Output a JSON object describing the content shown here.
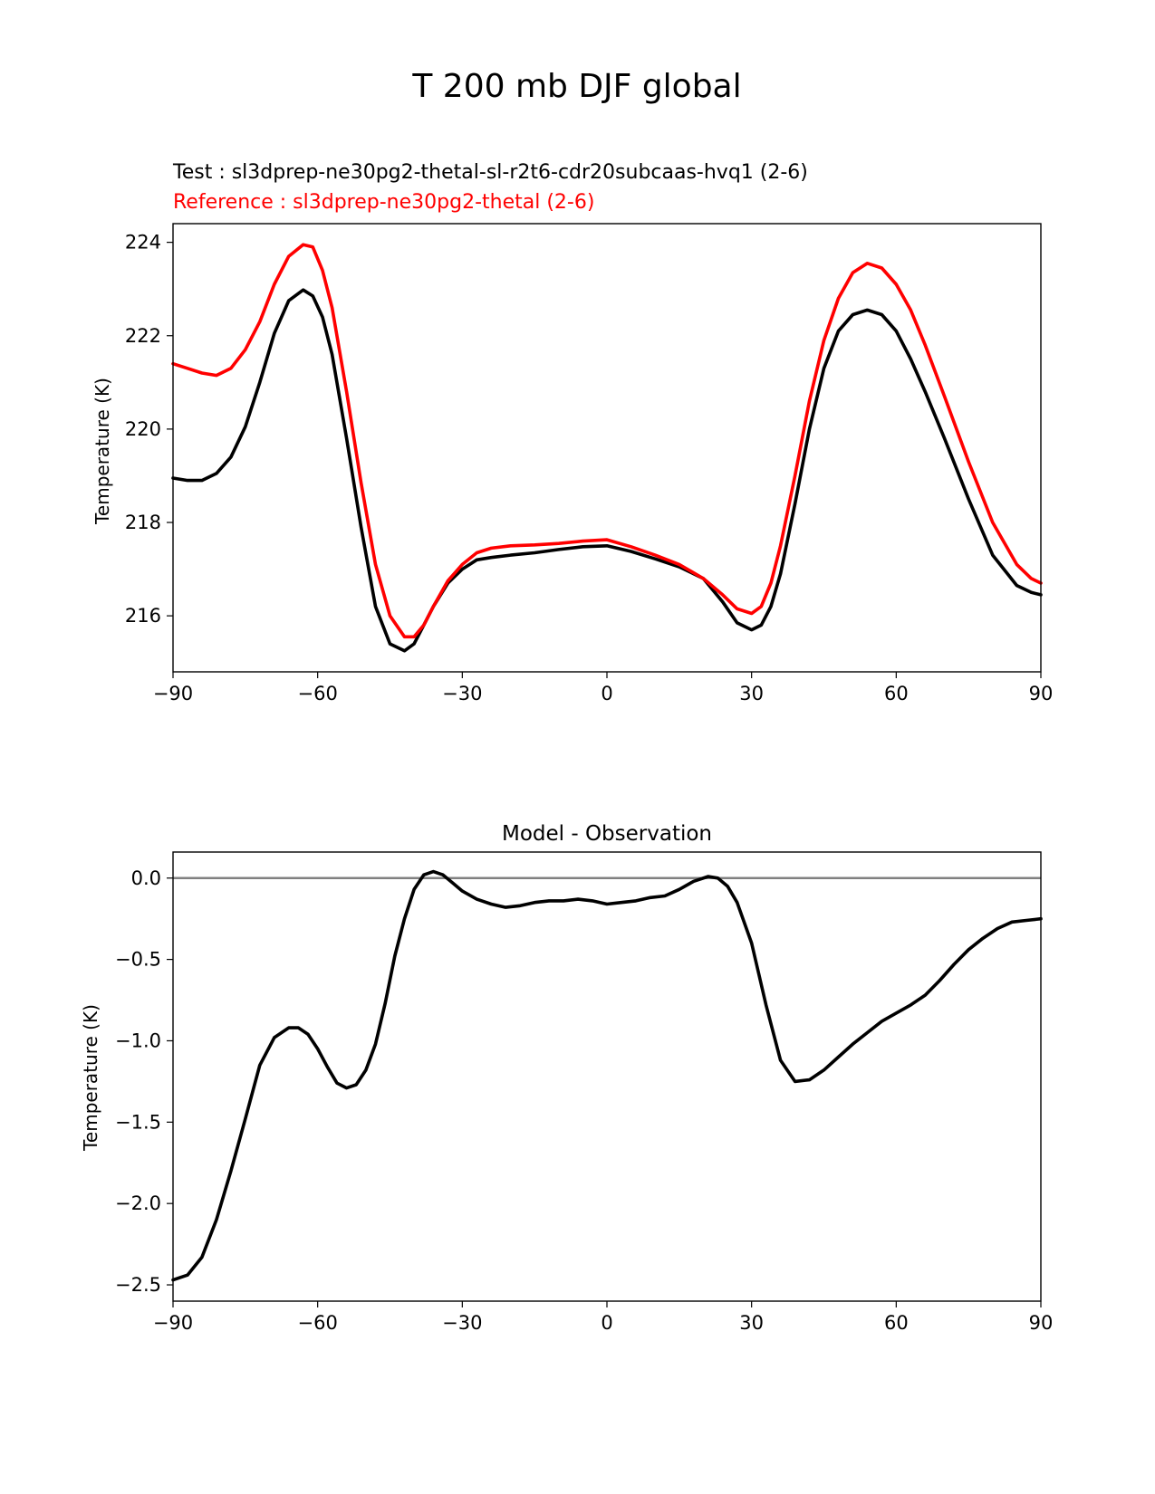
{
  "figure": {
    "title": "T 200 mb DJF global"
  },
  "colors": {
    "test": "#000000",
    "reference": "#ff0000",
    "zero_line": "#808080"
  },
  "chart_data": [
    {
      "type": "line",
      "test_label": "Test : sl3dprep-ne30pg2-thetal-sl-r2t6-cdr20subcaas-hvq1 (2-6)",
      "reference_label": "Reference : sl3dprep-ne30pg2-thetal (2-6)",
      "xlabel": "",
      "ylabel": "Temperature (K)",
      "xlim": [
        -90,
        90
      ],
      "ylim": [
        214.8,
        224.4
      ],
      "xticks": [
        -90,
        -60,
        -30,
        0,
        30,
        60,
        90
      ],
      "xtick_labels": [
        "−90",
        "−60",
        "−30",
        "0",
        "30",
        "60",
        "90"
      ],
      "yticks": [
        216,
        218,
        220,
        222,
        224
      ],
      "ytick_labels": [
        "216",
        "218",
        "220",
        "222",
        "224"
      ],
      "grid": false,
      "series": [
        {
          "key": "test",
          "x": [
            -90,
            -87,
            -84,
            -81,
            -78,
            -75,
            -72,
            -69,
            -66,
            -63,
            -61,
            -59,
            -57,
            -54,
            -51,
            -48,
            -45,
            -42,
            -40,
            -38,
            -36,
            -33,
            -30,
            -27,
            -24,
            -20,
            -15,
            -10,
            -5,
            0,
            5,
            10,
            15,
            20,
            24,
            27,
            30,
            32,
            34,
            36,
            39,
            42,
            45,
            48,
            51,
            54,
            57,
            60,
            63,
            66,
            70,
            75,
            80,
            85,
            88,
            90
          ],
          "y": [
            218.95,
            218.9,
            218.9,
            219.05,
            219.4,
            220.05,
            221.0,
            222.05,
            222.75,
            222.98,
            222.85,
            222.4,
            221.6,
            219.8,
            217.9,
            216.2,
            215.4,
            215.25,
            215.4,
            215.8,
            216.2,
            216.7,
            217.0,
            217.2,
            217.25,
            217.3,
            217.35,
            217.42,
            217.48,
            217.5,
            217.38,
            217.22,
            217.05,
            216.8,
            216.3,
            215.85,
            215.7,
            215.8,
            216.2,
            216.9,
            218.4,
            220.0,
            221.3,
            222.1,
            222.45,
            222.55,
            222.45,
            222.1,
            221.5,
            220.8,
            219.8,
            218.5,
            217.3,
            216.65,
            216.5,
            216.45
          ]
        },
        {
          "key": "reference",
          "x": [
            -90,
            -87,
            -84,
            -81,
            -78,
            -75,
            -72,
            -69,
            -66,
            -63,
            -61,
            -59,
            -57,
            -54,
            -51,
            -48,
            -45,
            -42,
            -40,
            -38,
            -36,
            -33,
            -30,
            -27,
            -24,
            -20,
            -15,
            -10,
            -5,
            0,
            5,
            10,
            15,
            20,
            24,
            27,
            30,
            32,
            34,
            36,
            39,
            42,
            45,
            48,
            51,
            54,
            57,
            60,
            63,
            66,
            70,
            75,
            80,
            85,
            88,
            90
          ],
          "y": [
            221.4,
            221.3,
            221.2,
            221.15,
            221.3,
            221.7,
            222.3,
            223.1,
            223.7,
            223.95,
            223.9,
            223.4,
            222.6,
            220.8,
            218.85,
            217.1,
            216.0,
            215.55,
            215.55,
            215.8,
            216.2,
            216.75,
            217.1,
            217.35,
            217.45,
            217.5,
            217.52,
            217.55,
            217.6,
            217.63,
            217.48,
            217.3,
            217.1,
            216.8,
            216.45,
            216.15,
            216.05,
            216.2,
            216.7,
            217.5,
            219.0,
            220.6,
            221.9,
            222.8,
            223.35,
            223.55,
            223.45,
            223.1,
            222.55,
            221.8,
            220.7,
            219.3,
            218.0,
            217.1,
            216.8,
            216.7
          ]
        }
      ]
    },
    {
      "type": "line",
      "title": "Model - Observation",
      "xlabel": "",
      "ylabel": "Temperature (K)",
      "xlim": [
        -90,
        90
      ],
      "ylim": [
        -2.6,
        0.16
      ],
      "xticks": [
        -90,
        -60,
        -30,
        0,
        30,
        60,
        90
      ],
      "xtick_labels": [
        "−90",
        "−60",
        "−30",
        "0",
        "30",
        "60",
        "90"
      ],
      "yticks": [
        0.0,
        -0.5,
        -1.0,
        -1.5,
        -2.0,
        -2.5
      ],
      "ytick_labels": [
        "0.0",
        "−0.5",
        "−1.0",
        "−1.5",
        "−2.0",
        "−2.5"
      ],
      "grid": false,
      "zero_line": 0.0,
      "series": [
        {
          "key": "difference",
          "x": [
            -90,
            -87,
            -84,
            -81,
            -78,
            -75,
            -72,
            -69,
            -66,
            -64,
            -62,
            -60,
            -58,
            -56,
            -54,
            -52,
            -50,
            -48,
            -46,
            -44,
            -42,
            -40,
            -38,
            -36,
            -34,
            -32,
            -30,
            -27,
            -24,
            -21,
            -18,
            -15,
            -12,
            -9,
            -6,
            -3,
            0,
            3,
            6,
            9,
            12,
            15,
            18,
            21,
            23,
            25,
            27,
            30,
            33,
            36,
            39,
            42,
            45,
            48,
            51,
            54,
            57,
            60,
            63,
            66,
            69,
            72,
            75,
            78,
            81,
            84,
            87,
            90
          ],
          "y": [
            -2.47,
            -2.44,
            -2.33,
            -2.1,
            -1.8,
            -1.48,
            -1.15,
            -0.98,
            -0.92,
            -0.92,
            -0.96,
            -1.05,
            -1.16,
            -1.26,
            -1.29,
            -1.27,
            -1.18,
            -1.02,
            -0.77,
            -0.48,
            -0.25,
            -0.07,
            0.02,
            0.04,
            0.02,
            -0.03,
            -0.08,
            -0.13,
            -0.16,
            -0.18,
            -0.17,
            -0.15,
            -0.14,
            -0.14,
            -0.13,
            -0.14,
            -0.16,
            -0.15,
            -0.14,
            -0.12,
            -0.11,
            -0.07,
            -0.02,
            0.01,
            0.0,
            -0.05,
            -0.15,
            -0.4,
            -0.78,
            -1.12,
            -1.25,
            -1.24,
            -1.18,
            -1.1,
            -1.02,
            -0.95,
            -0.88,
            -0.83,
            -0.78,
            -0.72,
            -0.63,
            -0.53,
            -0.44,
            -0.37,
            -0.31,
            -0.27,
            -0.26,
            -0.25
          ]
        }
      ]
    }
  ]
}
